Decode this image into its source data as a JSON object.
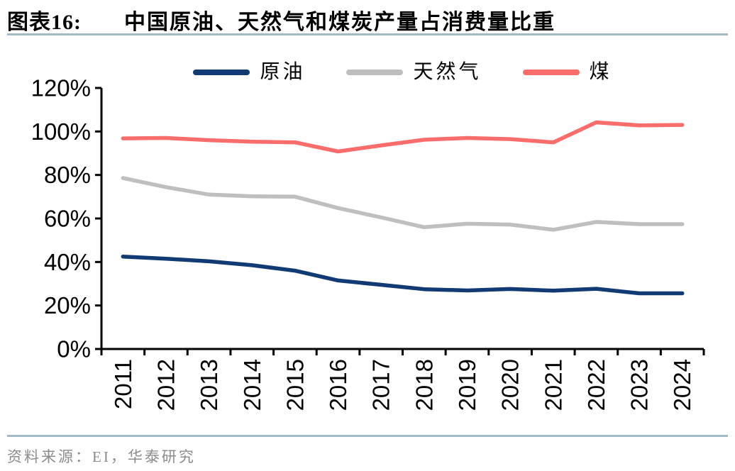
{
  "header": {
    "figure_label": "图表16:",
    "title": "中国原油、天然气和煤炭产量占消费量比重"
  },
  "footer": {
    "source": "资料来源：EI，华泰研究"
  },
  "colors": {
    "rule": "#a3bac9",
    "axis": "#000000",
    "tick_label": "#000000",
    "footer_text": "#8c8c8c",
    "background": "#ffffff"
  },
  "chart_data": {
    "type": "line",
    "title": "中国原油、天然气和煤炭产量占消费量比重",
    "categories": [
      "2011",
      "2012",
      "2013",
      "2014",
      "2015",
      "2016",
      "2017",
      "2018",
      "2019",
      "2020",
      "2021",
      "2022",
      "2023",
      "2024"
    ],
    "series": [
      {
        "key": "crude-oil",
        "name": "原油",
        "color": "#123a75",
        "values": [
          42.5,
          41.5,
          40.3,
          38.5,
          36.0,
          31.5,
          29.5,
          27.5,
          26.9,
          27.6,
          26.8,
          27.7,
          25.6,
          25.6
        ]
      },
      {
        "key": "natural-gas",
        "name": "天然气",
        "color": "#bfbfbf",
        "values": [
          78.6,
          74.4,
          71.0,
          70.2,
          70.0,
          64.8,
          60.5,
          56.0,
          57.6,
          57.2,
          54.8,
          58.4,
          57.4,
          57.4
        ]
      },
      {
        "key": "coal",
        "name": "煤",
        "color": "#fa6d6d",
        "values": [
          96.8,
          97.0,
          96.0,
          95.3,
          95.0,
          90.8,
          93.6,
          96.2,
          97.0,
          96.5,
          95.0,
          104.2,
          102.8,
          103.0
        ]
      }
    ],
    "ylim": [
      0,
      120
    ],
    "y_tick_step": 20,
    "y_ticks": [
      "0%",
      "20%",
      "40%",
      "60%",
      "80%",
      "100%",
      "120%"
    ],
    "xlabel": "",
    "ylabel": "",
    "grid": false,
    "legend_position": "top-center"
  }
}
